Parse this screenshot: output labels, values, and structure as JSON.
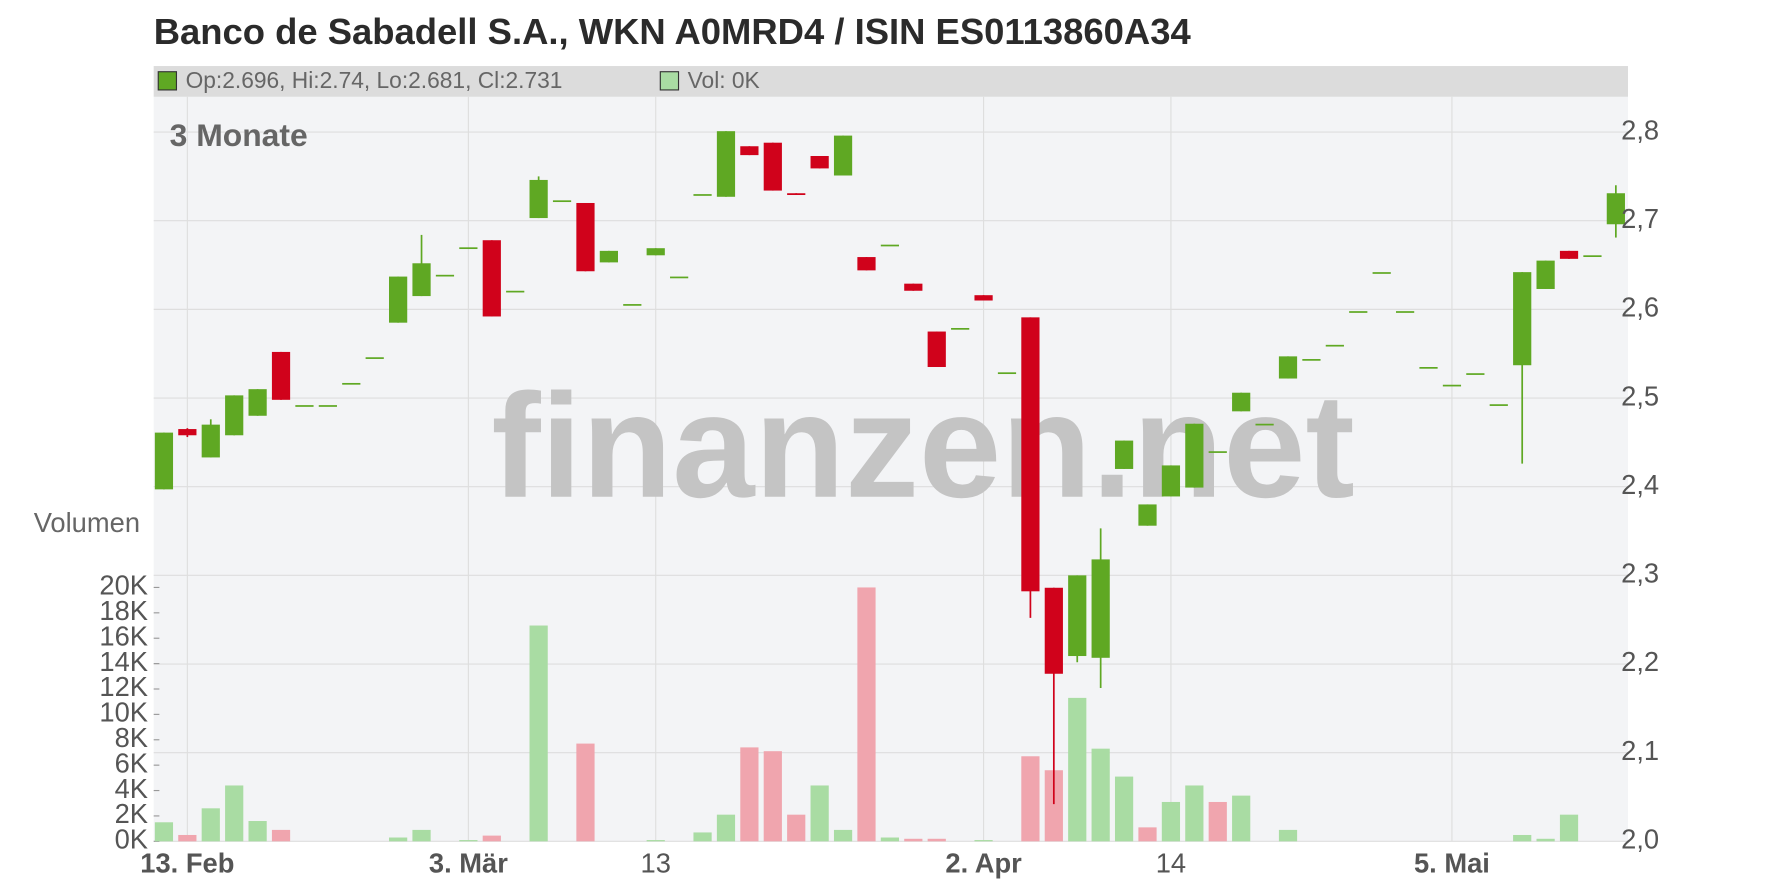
{
  "chart_data": {
    "type": "candlestick",
    "title": "Banco de Sabadell S.A., WKN A0MRD4 / ISIN ES0113860A34",
    "legend_price": "Op:2.696, Hi:2.74, Lo:2.681, Cl:2.731",
    "legend_volume": "Vol: 0K",
    "period": "3 Monate",
    "watermark": "finanzen.net",
    "up_color": "#5fa823",
    "down_color": "#d0021b",
    "categories": [
      null,
      "13. Feb",
      null,
      null,
      null,
      null,
      null,
      null,
      null,
      null,
      null,
      null,
      null,
      "3. Mär",
      null,
      null,
      null,
      null,
      null,
      null,
      null,
      "13",
      null,
      null,
      null,
      null,
      null,
      null,
      null,
      null,
      null,
      null,
      null,
      null,
      null,
      "2. Apr",
      null,
      null,
      null,
      null,
      null,
      null,
      null,
      "14",
      null,
      null,
      null,
      null,
      null,
      null,
      null,
      null,
      null,
      null,
      null,
      "5. Mai",
      null,
      null,
      null,
      null,
      null,
      null,
      null
    ],
    "open": [
      2.397,
      2.465,
      2.433,
      2.458,
      2.48,
      2.552,
      2.492,
      2.492,
      2.517,
      2.546,
      2.585,
      2.615,
      2.639,
      2.67,
      2.678,
      2.621,
      2.703,
      2.723,
      2.72,
      2.653,
      2.606,
      2.661,
      2.637,
      2.73,
      2.727,
      2.784,
      2.788,
      2.731,
      2.773,
      2.751,
      2.659,
      2.673,
      2.629,
      2.575,
      2.579,
      2.616,
      2.529,
      2.591,
      2.286,
      2.209,
      2.207,
      2.42,
      2.356,
      2.389,
      2.399,
      2.44,
      2.485,
      2.471,
      2.522,
      2.544,
      2.56,
      2.598,
      2.642,
      2.598,
      2.535,
      2.515,
      2.528,
      2.493,
      2.537,
      2.623,
      2.666,
      2.661,
      2.696
    ],
    "high": [
      2.461,
      2.466,
      2.476,
      2.503,
      2.51,
      2.552,
      2.492,
      2.492,
      2.517,
      2.546,
      2.637,
      2.684,
      2.639,
      2.67,
      2.678,
      2.621,
      2.75,
      2.723,
      2.72,
      2.666,
      2.606,
      2.669,
      2.637,
      2.73,
      2.801,
      2.784,
      2.788,
      2.731,
      2.773,
      2.796,
      2.659,
      2.673,
      2.629,
      2.575,
      2.579,
      2.616,
      2.529,
      2.591,
      2.286,
      2.3,
      2.353,
      2.452,
      2.38,
      2.424,
      2.471,
      2.44,
      2.506,
      2.471,
      2.547,
      2.544,
      2.56,
      2.598,
      2.642,
      2.598,
      2.535,
      2.515,
      2.528,
      2.493,
      2.642,
      2.655,
      2.666,
      2.661,
      2.74
    ],
    "low": [
      2.397,
      2.456,
      2.433,
      2.458,
      2.48,
      2.498,
      2.492,
      2.492,
      2.517,
      2.546,
      2.585,
      2.615,
      2.639,
      2.67,
      2.592,
      2.621,
      2.703,
      2.723,
      2.643,
      2.653,
      2.606,
      2.661,
      2.637,
      2.73,
      2.727,
      2.774,
      2.734,
      2.729,
      2.759,
      2.751,
      2.644,
      2.673,
      2.621,
      2.535,
      2.579,
      2.61,
      2.529,
      2.252,
      2.042,
      2.202,
      2.173,
      2.42,
      2.356,
      2.389,
      2.399,
      2.44,
      2.485,
      2.471,
      2.522,
      2.544,
      2.56,
      2.598,
      2.642,
      2.598,
      2.535,
      2.515,
      2.528,
      2.493,
      2.426,
      2.623,
      2.657,
      2.661,
      2.681
    ],
    "close": [
      2.461,
      2.458,
      2.47,
      2.503,
      2.51,
      2.498,
      2.492,
      2.492,
      2.517,
      2.546,
      2.637,
      2.652,
      2.639,
      2.67,
      2.592,
      2.621,
      2.746,
      2.723,
      2.643,
      2.666,
      2.606,
      2.669,
      2.637,
      2.73,
      2.801,
      2.774,
      2.734,
      2.729,
      2.759,
      2.796,
      2.644,
      2.673,
      2.621,
      2.535,
      2.579,
      2.61,
      2.529,
      2.282,
      2.189,
      2.3,
      2.318,
      2.452,
      2.38,
      2.424,
      2.471,
      2.44,
      2.506,
      2.471,
      2.547,
      2.544,
      2.56,
      2.598,
      2.642,
      2.598,
      2.535,
      2.515,
      2.528,
      2.493,
      2.642,
      2.655,
      2.657,
      2.661,
      2.731
    ],
    "ylim": [
      2.0,
      2.8
    ],
    "yticks": [
      {
        "value": 2.0,
        "label": "2,0"
      },
      {
        "value": 2.1,
        "label": "2,1"
      },
      {
        "value": 2.2,
        "label": "2,2"
      },
      {
        "value": 2.3,
        "label": "2,3"
      },
      {
        "value": 2.4,
        "label": "2,4"
      },
      {
        "value": 2.5,
        "label": "2,5"
      },
      {
        "value": 2.6,
        "label": "2,6"
      },
      {
        "value": 2.7,
        "label": "2,7"
      },
      {
        "value": 2.8,
        "label": "2,8"
      }
    ],
    "grid": true,
    "volume": {
      "label": "Volumen",
      "up_color": "#a9dca3",
      "down_color": "#f0a5ae",
      "values": [
        1500,
        500,
        2600,
        4400,
        1600,
        900,
        0,
        0,
        0,
        0,
        300,
        900,
        0,
        100,
        450,
        0,
        17000,
        0,
        7700,
        0,
        0,
        100,
        0,
        700,
        2100,
        7400,
        7100,
        2100,
        4400,
        900,
        20000,
        300,
        200,
        200,
        0,
        100,
        0,
        6700,
        5600,
        11300,
        7300,
        5100,
        1100,
        3100,
        4400,
        3100,
        3600,
        0,
        900,
        0,
        0,
        0,
        0,
        0,
        0,
        0,
        0,
        0,
        500,
        200,
        2100,
        0,
        0
      ],
      "ylim": [
        0,
        20000
      ],
      "yticks": [
        {
          "value": 0,
          "label": "0K"
        },
        {
          "value": 2000,
          "label": "2K"
        },
        {
          "value": 4000,
          "label": "4K"
        },
        {
          "value": 6000,
          "label": "6K"
        },
        {
          "value": 8000,
          "label": "8K"
        },
        {
          "value": 10000,
          "label": "10K"
        },
        {
          "value": 12000,
          "label": "12K"
        },
        {
          "value": 14000,
          "label": "14K"
        },
        {
          "value": 16000,
          "label": "16K"
        },
        {
          "value": 18000,
          "label": "18K"
        },
        {
          "value": 20000,
          "label": "20K"
        }
      ]
    }
  }
}
